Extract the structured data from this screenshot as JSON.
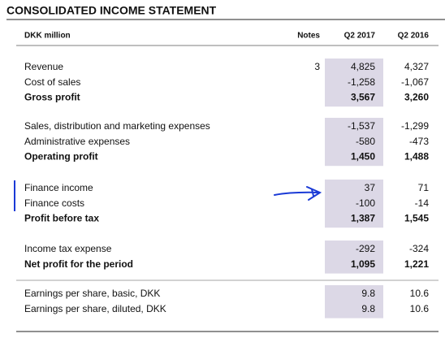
{
  "title": "CONSOLIDATED INCOME STATEMENT",
  "header": {
    "label": "DKK million",
    "notes": "Notes",
    "col1": "Q2 2017",
    "col2": "Q2 2016"
  },
  "groups": [
    {
      "rows": [
        {
          "label": "Revenue",
          "notes": "3",
          "q2017": "4,825",
          "q2016": "4,327"
        },
        {
          "label": "Cost of sales",
          "q2017": "-1,258",
          "q2016": "-1,067"
        }
      ],
      "total": {
        "label": "Gross profit",
        "q2017": "3,567",
        "q2016": "3,260"
      }
    },
    {
      "rows": [
        {
          "label": "Sales, distribution and marketing expenses",
          "q2017": "-1,537",
          "q2016": "-1,299"
        },
        {
          "label": "Administrative expenses",
          "q2017": "-580",
          "q2016": "-473"
        }
      ],
      "total": {
        "label": "Operating profit",
        "q2017": "1,450",
        "q2016": "1,488"
      }
    },
    {
      "rows": [
        {
          "label": "Finance income",
          "q2017": "37",
          "q2016": "71"
        },
        {
          "label": "Finance costs",
          "q2017": "-100",
          "q2016": "-14"
        }
      ],
      "total": {
        "label": "Profit before tax",
        "q2017": "1,387",
        "q2016": "1,545"
      }
    },
    {
      "rows": [
        {
          "label": "Income tax expense",
          "q2017": "-292",
          "q2016": "-324"
        }
      ],
      "total": {
        "label": "Net profit for the period",
        "q2017": "1,095",
        "q2016": "1,221"
      }
    },
    {
      "rows": [
        {
          "label": "Earnings per share, basic, DKK",
          "q2017": "9.8",
          "q2016": "10.6"
        },
        {
          "label": "Earnings per share, diluted, DKK",
          "q2017": "9.8",
          "q2016": "10.6"
        }
      ]
    }
  ]
}
